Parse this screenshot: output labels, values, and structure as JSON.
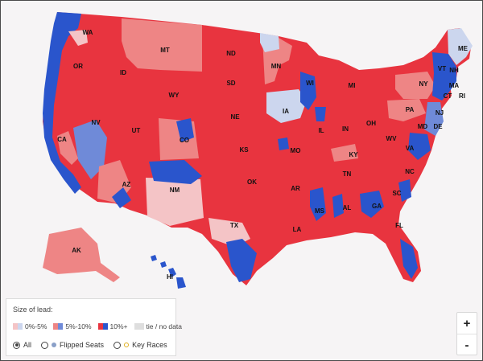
{
  "colors": {
    "background": "#f6f4f5",
    "rep_strong": "#e8343f",
    "rep_mid": "#ee8585",
    "rep_light": "#f4c4c6",
    "dem_strong": "#2a55cc",
    "dem_mid": "#6f8ad8",
    "dem_light": "#ccd6ee",
    "tie": "#dedede"
  },
  "state_labels": [
    "WA",
    "OR",
    "ID",
    "MT",
    "ND",
    "MN",
    "ME",
    "VT",
    "NH",
    "NY",
    "MA",
    "CT",
    "RI",
    "WI",
    "MI",
    "SD",
    "WY",
    "NV",
    "UT",
    "CO",
    "NE",
    "IA",
    "PA",
    "NJ",
    "DE",
    "MD",
    "OH",
    "IL",
    "IN",
    "WV",
    "VA",
    "KY",
    "CA",
    "KS",
    "MO",
    "TN",
    "NC",
    "AZ",
    "NM",
    "OK",
    "AR",
    "SC",
    "AL",
    "GA",
    "MS",
    "TX",
    "LA",
    "FL",
    "AK",
    "HI"
  ],
  "legend": {
    "title": "Size of lead:",
    "swatches": [
      {
        "label": "0%-5%",
        "left": "#f4c4c6",
        "right": "#ccd6ee"
      },
      {
        "label": "5%-10%",
        "left": "#ee8585",
        "right": "#6f8ad8"
      },
      {
        "label": "10%+",
        "left": "#e8343f",
        "right": "#2a55cc"
      },
      {
        "label": "tie / no data"
      }
    ],
    "options": [
      {
        "label": "All",
        "selected": true
      },
      {
        "label": "Flipped Seats",
        "selected": false
      },
      {
        "label": "Key Races",
        "selected": false
      }
    ]
  },
  "zoom": {
    "in_label": "+",
    "out_label": "-"
  }
}
